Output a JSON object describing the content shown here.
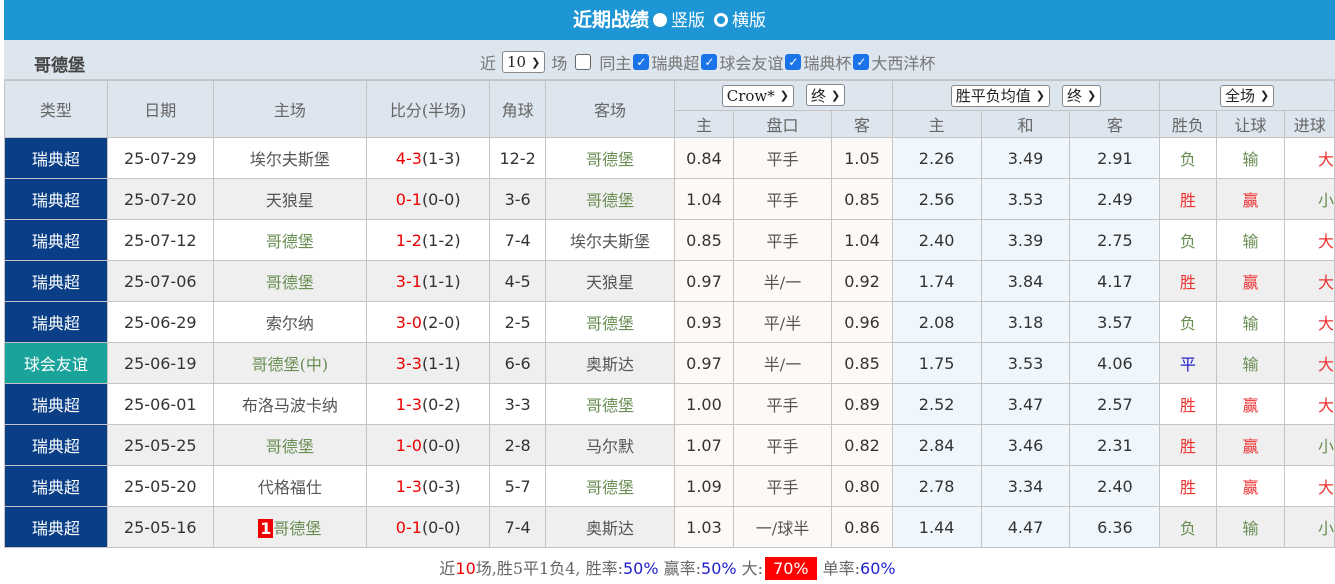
{
  "title": "近期战绩",
  "view_options": [
    {
      "label": "竖版",
      "selected": true
    },
    {
      "label": "横版",
      "selected": false
    }
  ],
  "team": "哥德堡",
  "filter": {
    "prefix": "近",
    "count": "10",
    "suffix": "场",
    "checkboxes": [
      {
        "label": "同主",
        "checked": false
      },
      {
        "label": "瑞典超",
        "checked": true
      },
      {
        "label": "球会友谊",
        "checked": true
      },
      {
        "label": "瑞典杯",
        "checked": true
      },
      {
        "label": "大西洋杯",
        "checked": true
      }
    ]
  },
  "headers": {
    "type": "类型",
    "date": "日期",
    "home": "主场",
    "score": "比分(半场)",
    "corner": "角球",
    "away": "客场",
    "ah_company": "Crow*",
    "ah_time": "终",
    "eu_type": "胜平负均值",
    "eu_time": "终",
    "scope": "全场",
    "ah_sub": [
      "主",
      "盘口",
      "客"
    ],
    "eu_sub": [
      "主",
      "和",
      "客"
    ],
    "res_sub": [
      "胜负",
      "让球",
      "进球"
    ]
  },
  "colors": {
    "league_swe": "#0a3f87",
    "league_friendly": "#1aa39a",
    "title_bar": "#1e96d6"
  },
  "rows": [
    {
      "type": "瑞典超",
      "date": "25-07-29",
      "home": "埃尔夫斯堡",
      "score": "4-3",
      "half": "(1-3)",
      "corner": "12-2",
      "away": "哥德堡",
      "ah_h": "0.84",
      "ah": "平手",
      "ah_a": "1.05",
      "eu_h": "2.26",
      "eu_d": "3.49",
      "eu_a": "2.91",
      "r1": "负",
      "r2": "输",
      "r3": "大"
    },
    {
      "type": "瑞典超",
      "date": "25-07-20",
      "home": "天狼星",
      "score": "0-1",
      "half": "(0-0)",
      "corner": "3-6",
      "away": "哥德堡",
      "ah_h": "1.04",
      "ah": "平手",
      "ah_a": "0.85",
      "eu_h": "2.56",
      "eu_d": "3.53",
      "eu_a": "2.49",
      "r1": "胜",
      "r2": "赢",
      "r3": "小"
    },
    {
      "type": "瑞典超",
      "date": "25-07-12",
      "home": "哥德堡",
      "score": "1-2",
      "half": "(1-2)",
      "corner": "7-4",
      "away": "埃尔夫斯堡",
      "ah_h": "0.85",
      "ah": "平手",
      "ah_a": "1.04",
      "eu_h": "2.40",
      "eu_d": "3.39",
      "eu_a": "2.75",
      "r1": "负",
      "r2": "输",
      "r3": "大"
    },
    {
      "type": "瑞典超",
      "date": "25-07-06",
      "home": "哥德堡",
      "score": "3-1",
      "half": "(1-1)",
      "corner": "4-5",
      "away": "天狼星",
      "ah_h": "0.97",
      "ah": "半/一",
      "ah_a": "0.92",
      "eu_h": "1.74",
      "eu_d": "3.84",
      "eu_a": "4.17",
      "r1": "胜",
      "r2": "赢",
      "r3": "大"
    },
    {
      "type": "瑞典超",
      "date": "25-06-29",
      "home": "索尔纳",
      "score": "3-0",
      "half": "(2-0)",
      "corner": "2-5",
      "away": "哥德堡",
      "ah_h": "0.93",
      "ah": "平/半",
      "ah_a": "0.96",
      "eu_h": "2.08",
      "eu_d": "3.18",
      "eu_a": "3.57",
      "r1": "负",
      "r2": "输",
      "r3": "大"
    },
    {
      "type": "球会友谊",
      "date": "25-06-19",
      "home": "哥德堡(中)",
      "score": "3-3",
      "half": "(1-1)",
      "corner": "6-6",
      "away": "奥斯达",
      "ah_h": "0.97",
      "ah": "半/一",
      "ah_a": "0.85",
      "eu_h": "1.75",
      "eu_d": "3.53",
      "eu_a": "4.06",
      "r1": "平",
      "r2": "输",
      "r3": "大"
    },
    {
      "type": "瑞典超",
      "date": "25-06-01",
      "home": "布洛马波卡纳",
      "score": "1-3",
      "half": "(0-2)",
      "corner": "3-3",
      "away": "哥德堡",
      "ah_h": "1.00",
      "ah": "平手",
      "ah_a": "0.89",
      "eu_h": "2.52",
      "eu_d": "3.47",
      "eu_a": "2.57",
      "r1": "胜",
      "r2": "赢",
      "r3": "大"
    },
    {
      "type": "瑞典超",
      "date": "25-05-25",
      "home": "哥德堡",
      "score": "1-0",
      "half": "(0-0)",
      "corner": "2-8",
      "away": "马尔默",
      "ah_h": "1.07",
      "ah": "平手",
      "ah_a": "0.82",
      "eu_h": "2.84",
      "eu_d": "3.46",
      "eu_a": "2.31",
      "r1": "胜",
      "r2": "赢",
      "r3": "小"
    },
    {
      "type": "瑞典超",
      "date": "25-05-20",
      "home": "代格福仕",
      "score": "1-3",
      "half": "(0-3)",
      "corner": "5-7",
      "away": "哥德堡",
      "ah_h": "1.09",
      "ah": "平手",
      "ah_a": "0.80",
      "eu_h": "2.78",
      "eu_d": "3.34",
      "eu_a": "2.40",
      "r1": "胜",
      "r2": "赢",
      "r3": "大"
    },
    {
      "type": "瑞典超",
      "date": "25-05-16",
      "home": "哥德堡",
      "home_red": "1",
      "score": "0-1",
      "half": "(0-0)",
      "corner": "7-4",
      "away": "奥斯达",
      "ah_h": "1.03",
      "ah": "一/球半",
      "ah_a": "0.86",
      "eu_h": "1.44",
      "eu_d": "4.47",
      "eu_a": "6.36",
      "r1": "负",
      "r2": "输",
      "r3": "小"
    }
  ],
  "summary": {
    "p1": "近",
    "n": "10",
    "p2": "场,胜5平1负4,",
    "win_label": " 胜率:",
    "win": "50%",
    "ying_label": " 赢率:",
    "ying": "50%",
    "big_label": " 大:",
    "big": "70%",
    "odd_label": "单率:",
    "odd": "60%"
  }
}
